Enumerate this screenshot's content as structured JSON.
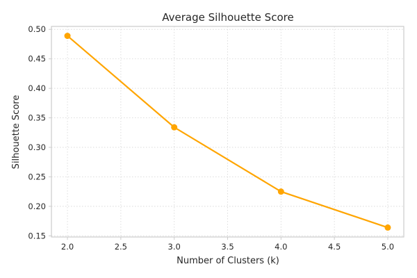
{
  "chart_data": {
    "type": "line",
    "title": "Average Silhouette Score",
    "xlabel": "Number of Clusters (k)",
    "ylabel": "Silhouette Score",
    "x": [
      2,
      3,
      4,
      5
    ],
    "series": [
      {
        "values": [
          0.489,
          0.334,
          0.225,
          0.164
        ]
      }
    ],
    "xlim": [
      1.85,
      5.15
    ],
    "ylim": [
      0.148,
      0.505
    ],
    "xticks": [
      "2.0",
      "2.5",
      "3.0",
      "3.5",
      "4.0",
      "4.5",
      "5.0"
    ],
    "yticks": [
      "0.15",
      "0.20",
      "0.25",
      "0.30",
      "0.35",
      "0.40",
      "0.45",
      "0.50"
    ],
    "grid": true,
    "colors": {
      "line": "#ffa500",
      "marker": "#ffa500"
    }
  }
}
